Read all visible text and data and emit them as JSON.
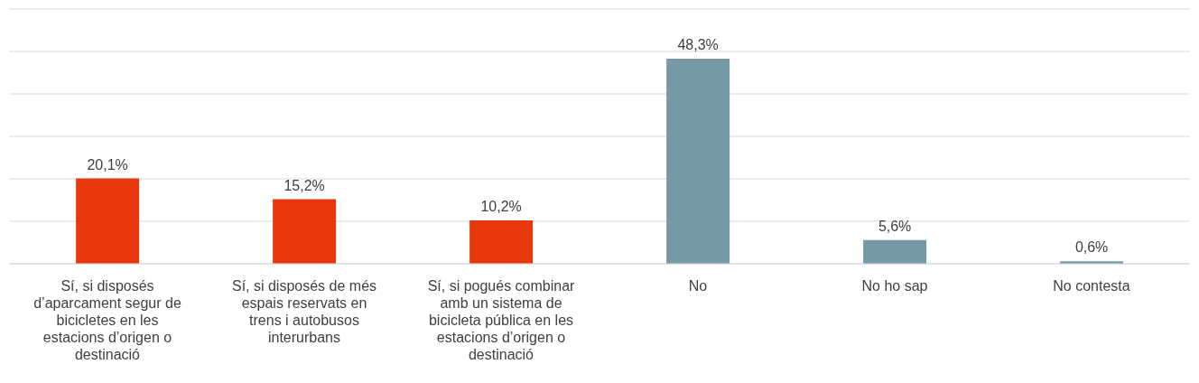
{
  "chart_data": {
    "type": "bar",
    "categories": [
      "Sí, si disposés d’aparcament segur de bicicletes en les estacions d’origen o destinació",
      "Sí, si disposés de més espais reservats en trens i autobusos interurbans",
      "Sí, si pogués combinar amb un sistema de bicicleta pública en les estacions d’origen o destinació",
      "No",
      "No ho sap",
      "No contesta"
    ],
    "values": [
      20.1,
      15.2,
      10.2,
      48.3,
      5.6,
      0.6
    ],
    "value_labels": [
      "20,1%",
      "15,2%",
      "10,2%",
      "48,3%",
      "5,6%",
      "0,6%"
    ],
    "colors": [
      "#e8380d",
      "#e8380d",
      "#e8380d",
      "#7599a5",
      "#7599a5",
      "#7599a5"
    ],
    "ylim": [
      0,
      60
    ],
    "yticks": [
      {
        "value": 0,
        "label": null
      },
      {
        "value": 10,
        "label": null
      },
      {
        "value": 20,
        "label": null
      },
      {
        "value": 30,
        "label": null
      },
      {
        "value": 40,
        "label": null
      },
      {
        "value": 50,
        "label": null
      },
      {
        "value": 60,
        "label": null
      }
    ],
    "grid": "y",
    "tick_labels": "x"
  }
}
